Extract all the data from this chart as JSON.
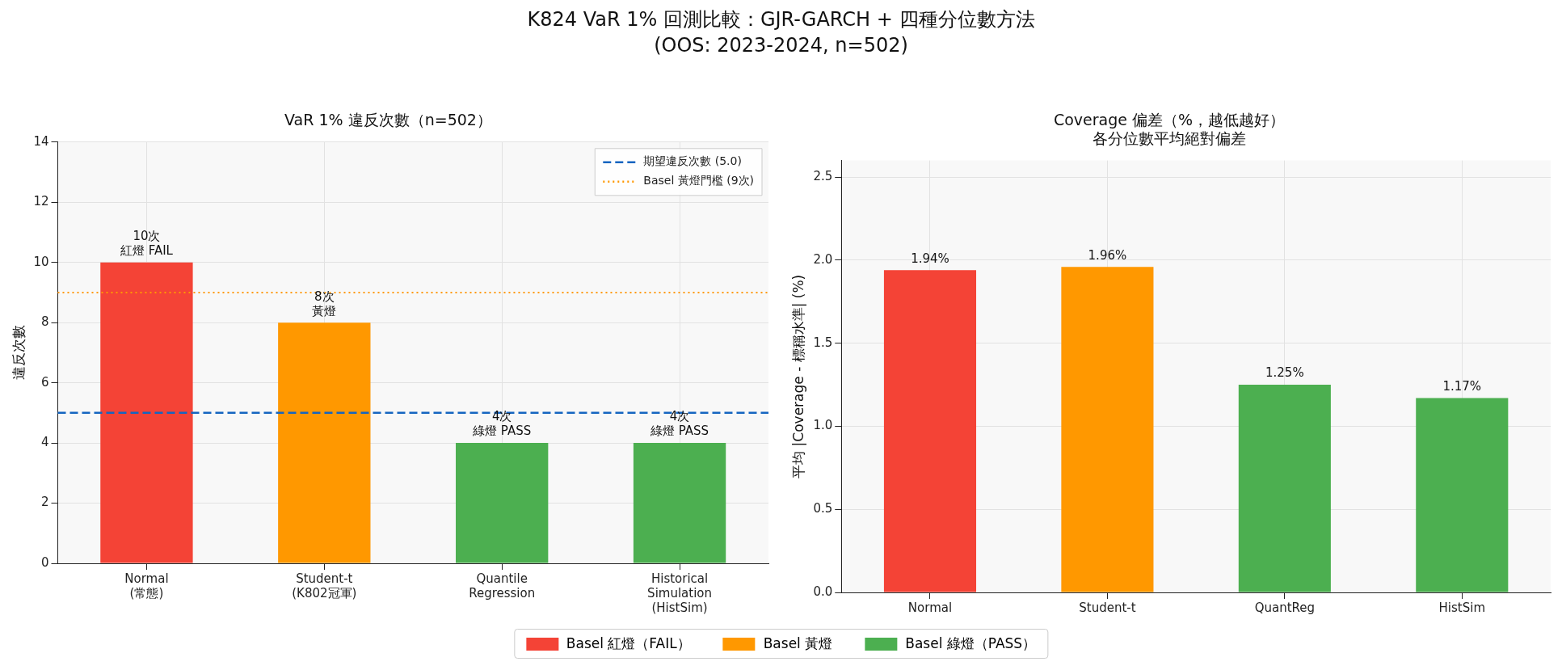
{
  "chart_data": [
    {
      "type": "other",
      "title": "K824 VaR 1% 回測比較：GJR-GARCH + 四種分位數方法",
      "subtitle": "(OOS: 2023-2024, n=502)"
    },
    {
      "type": "bar",
      "title": "VaR 1% 違反次數（n=502）",
      "ylabel": "違反次數",
      "categories": [
        "Normal\n(常態)",
        "Student-t\n(K802冠軍)",
        "Quantile\nRegression",
        "Historical\nSimulation\n(HistSim)"
      ],
      "stacked": true,
      "series": [
        {
          "color": "#f44336",
          "values": [
            10,
            null,
            null,
            null
          ],
          "value_labels": [
            "10次紅燈 FAIL",
            null,
            null,
            null
          ]
        },
        {
          "color": "#ff9800",
          "values": [
            null,
            8,
            null,
            null
          ],
          "value_labels": [
            null,
            "8次黃燈",
            null,
            null
          ]
        },
        {
          "color": "#4caf50",
          "values": [
            null,
            null,
            4,
            4
          ],
          "value_labels": [
            null,
            null,
            "4次綠燈 PASS",
            "4次綠燈 PASS"
          ]
        }
      ],
      "ylim": [
        0,
        14
      ],
      "yticks": [
        0,
        2,
        4,
        6,
        8,
        10,
        12,
        14
      ],
      "grid": true,
      "legend": "top right",
      "ref_lines": [
        {
          "axis": "y",
          "value": 5,
          "label": "期望違反次數 (5.0)",
          "color": "#1565c0",
          "line_style": "dashed"
        },
        {
          "axis": "y",
          "value": 9,
          "label": "Basel 黃燈門檻 (9次)",
          "color": "#ff9800",
          "line_style": "dotted"
        }
      ]
    },
    {
      "type": "bar",
      "title": "Coverage 偏差（%，越低越好）",
      "subtitle": "各分位數平均絕對偏差",
      "ylabel": "平均 |Coverage - 標稱水準| (%)",
      "categories": [
        "Normal",
        "Student-t",
        "QuantReg",
        "HistSim"
      ],
      "stacked": true,
      "series": [
        {
          "name": "Basel 紅燈（FAIL）",
          "color": "#f44336",
          "values": [
            1.94,
            null,
            null,
            null
          ],
          "value_labels": [
            "1.94%",
            null,
            null,
            null
          ]
        },
        {
          "name": "Basel 黃燈",
          "color": "#ff9800",
          "values": [
            null,
            1.96,
            null,
            null
          ],
          "value_labels": [
            null,
            "1.96%",
            null,
            null
          ]
        },
        {
          "name": "Basel 綠燈（PASS）",
          "color": "#4caf50",
          "values": [
            null,
            null,
            1.25,
            1.17
          ],
          "value_labels": [
            null,
            null,
            "1.25%",
            "1.17%"
          ]
        }
      ],
      "ylim": [
        0,
        2.6
      ],
      "yticks": [
        {
          "value": 0,
          "label": "0.0"
        },
        0.5,
        {
          "value": 1,
          "label": "1.0"
        },
        1.5,
        {
          "value": 2,
          "label": "2.0"
        },
        2.5
      ],
      "grid": true,
      "legend": "bottom"
    }
  ]
}
